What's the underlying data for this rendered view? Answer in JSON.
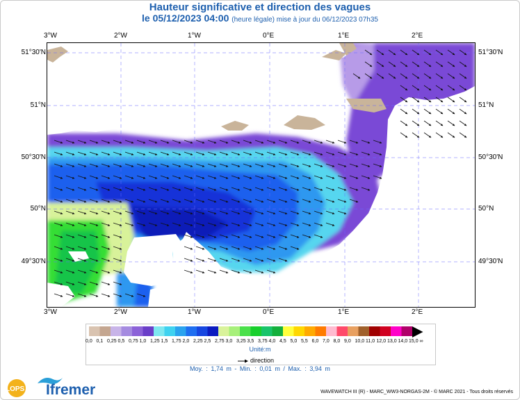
{
  "title": "Hauteur significative et direction des vagues",
  "subtitle": {
    "date": "le 05/12/2023 04:00",
    "note": "(heure légale) mise à jour du 06/12/2023 07h35"
  },
  "axes": {
    "lon_top": [
      "3°W",
      "2°W",
      "1°W",
      "0°E",
      "1°E",
      "2°E"
    ],
    "lon_bottom": [
      "3°W",
      "2°W",
      "1°W",
      "0°E",
      "1°E",
      "2°E"
    ],
    "lat_left": [
      "51°30'N",
      "51°N",
      "50°30'N",
      "50°N",
      "49°30'N"
    ],
    "lat_right": [
      "51°30'N",
      "51°N",
      "50°30'N",
      "50°N",
      "49°30'N"
    ]
  },
  "legend": {
    "values": [
      "0,0",
      "0,1",
      "0,25",
      "0,5",
      "0,75",
      "1,0",
      "1,25",
      "1,5",
      "1,75",
      "2,0",
      "2,25",
      "2,5",
      "2,75",
      "3,0",
      "3,25",
      "3,5",
      "3,75",
      "4,0",
      "4,5",
      "5,0",
      "5,5",
      "6,0",
      "7,0",
      "8,0",
      "9,0",
      "10,0",
      "11,0",
      "12,0",
      "13,0",
      "14,0",
      "15,0",
      "∞"
    ],
    "colors": [
      "#d9c3b0",
      "#c4a690",
      "#c8b4e8",
      "#a58be0",
      "#8c62d8",
      "#6a3ec8",
      "#7ee8f0",
      "#3fd2f0",
      "#2aa3ee",
      "#1e6ef0",
      "#1646e0",
      "#0b1bc0",
      "#d9f39b",
      "#a7f07a",
      "#4ae04a",
      "#18cf2c",
      "#18c46a",
      "#13b03c",
      "#ffff3c",
      "#ffd700",
      "#ffaa00",
      "#ff7b00",
      "#ffbbd0",
      "#ff4a6a",
      "#e8a060",
      "#a0602a",
      "#a00000",
      "#d00020",
      "#ff00c8",
      "#b0006a",
      "#000000"
    ],
    "unit": "Unité:m",
    "direction_label": "direction"
  },
  "stats": "Moy. : 1,74 m   -   Min. : 0,01 m / Max. : 3,94 m",
  "credits": "WAVEWATCH III (R) - MARC_WW3-NORGAS-2M - © MARC 2021 - Tous droits réservés",
  "logos": {
    "lops": "LOPS",
    "ifremer": "Ifremer"
  },
  "map_data": {
    "type": "wave-height-map",
    "region": "English Channel / Manche",
    "lon_range": [
      "3°W",
      "2°E"
    ],
    "lat_range": [
      "49°30'N",
      "51°30'N"
    ],
    "min_m": 0.01,
    "max_m": 3.94,
    "mean_m": 1.74,
    "wave_direction": "toward east-southeast"
  }
}
